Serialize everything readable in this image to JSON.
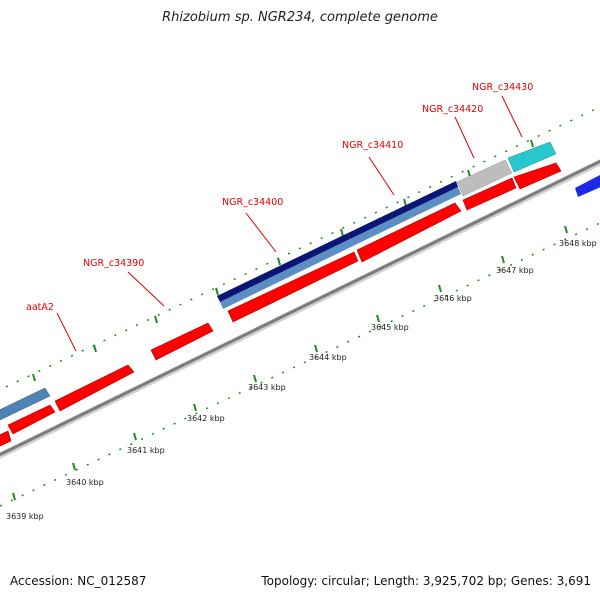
{
  "title": "Rhizobium sp. NGR234, complete genome",
  "footer": {
    "accession": "Accession: NC_012587",
    "summary": "Topology: circular; Length: 3,925,702 bp; Genes: 3,691"
  },
  "colors": {
    "cds": "#ff0000",
    "cds_shade": "#b20000",
    "gene_steel": "#4f83b8",
    "gene_navy": "#0a1676",
    "gene_gray": "#bdbdbd",
    "gene_cyan": "#27c9cf",
    "gene_blue": "#1a2ae6",
    "tick": "#1f8a1f",
    "backbone": "#8c8c8c",
    "label": "#e00000"
  },
  "scale_labels": [
    "3639 kbp",
    "3640 kbp",
    "3641 kbp",
    "3642 kbp",
    "3643 kbp",
    "3644 kbp",
    "3645 kbp",
    "3646 kbp",
    "3647 kbp",
    "3648 kbp"
  ],
  "gene_labels": [
    "aatA2",
    "NGR_c34390",
    "NGR_c34400",
    "NGR_c34410",
    "NGR_c34420",
    "NGR_c34430"
  ]
}
